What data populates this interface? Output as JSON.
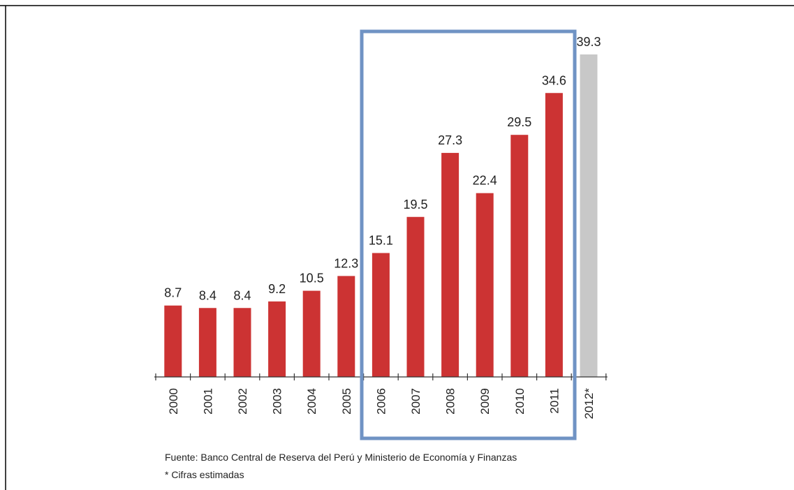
{
  "chart_data": {
    "type": "bar",
    "categories": [
      "2000",
      "2001",
      "2002",
      "2003",
      "2004",
      "2005",
      "2006",
      "2007",
      "2008",
      "2009",
      "2010",
      "2011",
      "2012*"
    ],
    "values": [
      8.7,
      8.4,
      8.4,
      9.2,
      10.5,
      12.3,
      15.1,
      19.5,
      27.3,
      22.4,
      29.5,
      34.6,
      39.3
    ],
    "colors": [
      "#cc3333",
      "#cc3333",
      "#cc3333",
      "#cc3333",
      "#cc3333",
      "#cc3333",
      "#cc3333",
      "#cc3333",
      "#cc3333",
      "#cc3333",
      "#cc3333",
      "#cc3333",
      "#c8c8c8"
    ],
    "source": "Fuente: Banco Central de Reserva del Perú y Ministerio de Economía y Finanzas",
    "note": "* Cifras estimadas"
  }
}
